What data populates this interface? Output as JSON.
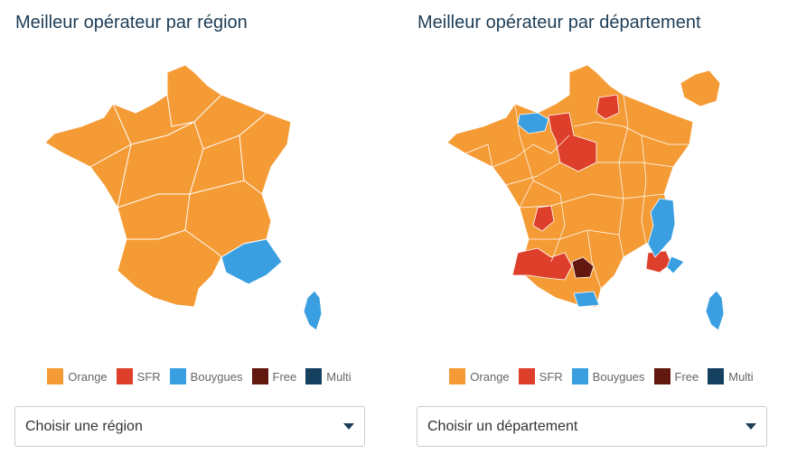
{
  "colors": {
    "orange": "#f59b35",
    "sfr": "#de3f2b",
    "bouygues": "#3a9fe0",
    "free": "#62180f",
    "multi": "#143f5f"
  },
  "legend": [
    {
      "label": "Orange",
      "color": "#f59b35"
    },
    {
      "label": "SFR",
      "color": "#de3f2b"
    },
    {
      "label": "Bouygues",
      "color": "#3a9fe0"
    },
    {
      "label": "Free",
      "color": "#62180f"
    },
    {
      "label": "Multi",
      "color": "#143f5f"
    }
  ],
  "left": {
    "title": "Meilleur opérateur par région",
    "select_placeholder": "Choisir une région"
  },
  "right": {
    "title": "Meilleur opérateur par département",
    "select_placeholder": "Choisir un département"
  }
}
